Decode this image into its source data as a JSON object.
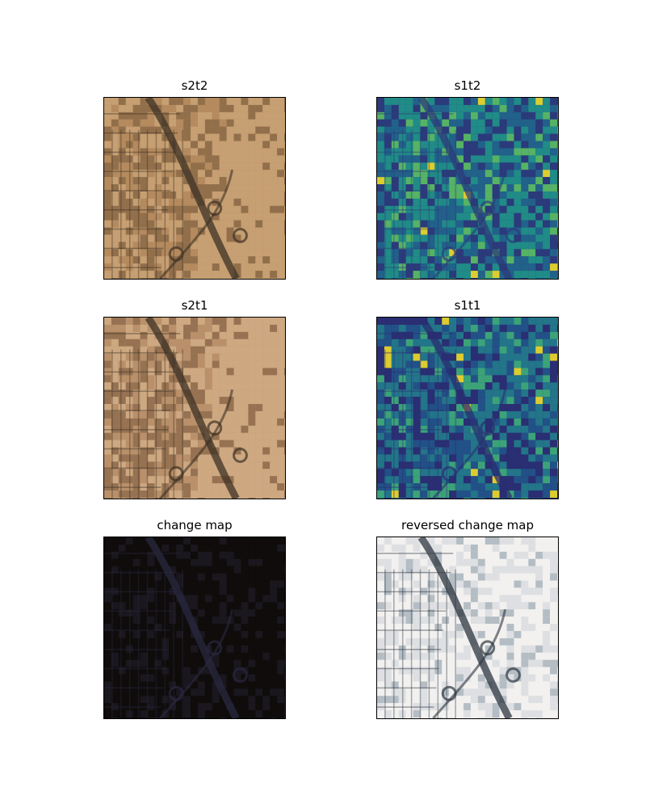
{
  "figure": {
    "panels": [
      {
        "id": "s2t2",
        "title": "s2t2",
        "style": "optical",
        "tone": [
          "#b48a5e",
          "#c9a276",
          "#8c6a48",
          "#3e3225"
        ]
      },
      {
        "id": "s1t2",
        "title": "s1t2",
        "style": "sar",
        "tone": [
          "#2c3b7a",
          "#20698d",
          "#1f9a8a",
          "#5ec962",
          "#fde725"
        ]
      },
      {
        "id": "s2t1",
        "title": "s2t1",
        "style": "optical",
        "tone": [
          "#b8906a",
          "#d0ad85",
          "#8f6d4e",
          "#3e3225"
        ]
      },
      {
        "id": "s1t1",
        "title": "s1t1",
        "style": "sar",
        "tone": [
          "#2a2e72",
          "#21578b",
          "#22818d",
          "#3fb77a",
          "#fde725"
        ]
      },
      {
        "id": "change_map",
        "title": "change map",
        "style": "dark",
        "tone": [
          "#0f0d0c",
          "#1c1a22",
          "#2a2840",
          "#c040c0"
        ]
      },
      {
        "id": "reversed_change_map",
        "title": "reversed change map",
        "style": "inverted",
        "tone": [
          "#f2f1ee",
          "#d9dcdf",
          "#a9b4bc",
          "#2e3640"
        ]
      }
    ]
  }
}
